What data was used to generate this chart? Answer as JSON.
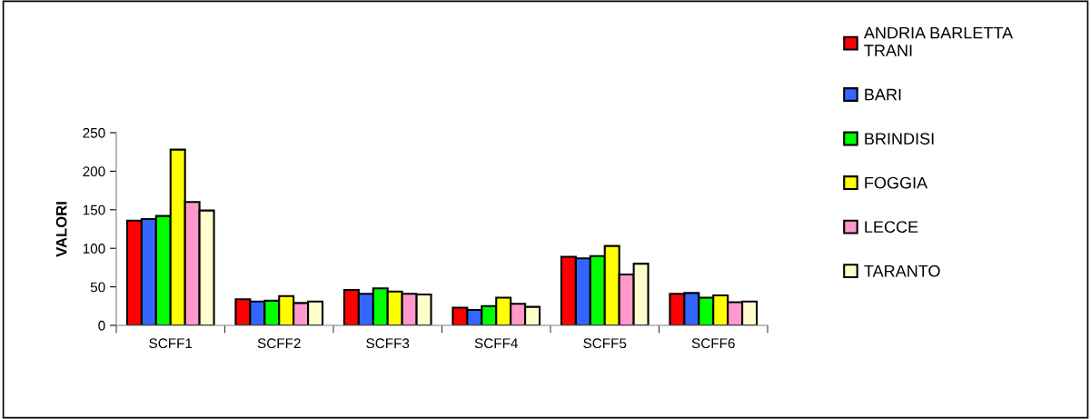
{
  "chart_data": {
    "type": "bar",
    "ylabel": "VALORI",
    "categories": [
      "SCFF1",
      "SCFF2",
      "SCFF3",
      "SCFF4",
      "SCFF5",
      "SCFF6"
    ],
    "series": [
      {
        "name": "ANDRIA BARLETTA TRANI",
        "color": "#ff0000",
        "values": [
          136,
          34,
          46,
          23,
          89,
          41
        ]
      },
      {
        "name": "BARI",
        "color": "#3366ff",
        "values": [
          138,
          31,
          41,
          20,
          87,
          42
        ]
      },
      {
        "name": "BRINDISI",
        "color": "#00ff00",
        "values": [
          142,
          32,
          48,
          25,
          90,
          36
        ]
      },
      {
        "name": "FOGGIA",
        "color": "#ffff00",
        "values": [
          228,
          38,
          44,
          36,
          103,
          39
        ]
      },
      {
        "name": "LECCE",
        "color": "#ff99cc",
        "values": [
          160,
          29,
          41,
          28,
          66,
          30
        ]
      },
      {
        "name": "TARANTO",
        "color": "#ffffcc",
        "values": [
          149,
          31,
          40,
          24,
          80,
          31
        ]
      }
    ],
    "ylim": [
      0,
      250
    ],
    "yticks": [
      0,
      50,
      100,
      150,
      200,
      250
    ],
    "grid": false,
    "legend": "right"
  }
}
